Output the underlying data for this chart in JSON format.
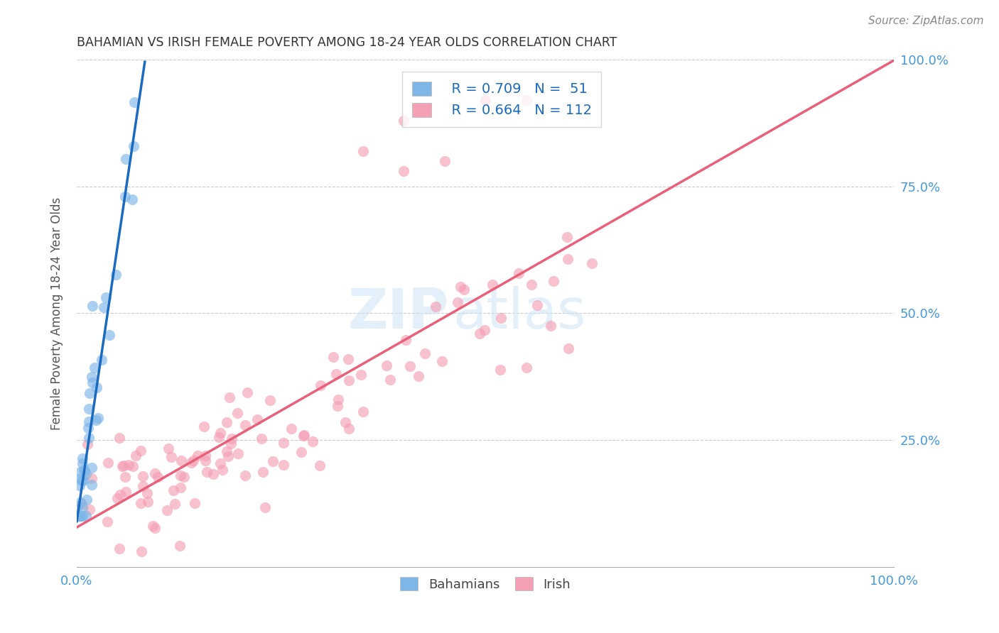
{
  "title": "BAHAMIAN VS IRISH FEMALE POVERTY AMONG 18-24 YEAR OLDS CORRELATION CHART",
  "source": "Source: ZipAtlas.com",
  "ylabel": "Female Poverty Among 18-24 Year Olds",
  "bahamian_color": "#7eb6e8",
  "irish_color": "#f4a0b5",
  "bahamian_line_color": "#1a6bbf",
  "irish_line_color": "#e8607a",
  "legend_R_bahamian": "R = 0.709",
  "legend_N_bahamian": "N =  51",
  "legend_R_irish": "R = 0.664",
  "legend_N_irish": "N = 112",
  "watermark_zip": "ZIP",
  "watermark_atlas": "atlas",
  "background_color": "#ffffff",
  "grid_color": "#cccccc",
  "axis_label_color": "#4499dd",
  "title_color": "#333333",
  "ylabel_color": "#555555"
}
